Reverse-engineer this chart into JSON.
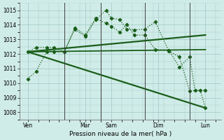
{
  "bg_color": "#d0ece8",
  "grid_color": "#a0c8c4",
  "line_color": "#1a5e1a",
  "ylim": [
    1007.5,
    1015.5
  ],
  "yticks": [
    1008,
    1009,
    1010,
    1011,
    1012,
    1013,
    1014,
    1015
  ],
  "xlabel": "Pression niveau de la mer( hPa )",
  "x_day_labels": [
    "Ven",
    "Mar",
    "Sam",
    "Dim",
    "Lun"
  ],
  "x_day_positions": [
    0,
    5.5,
    8,
    12.5,
    17
  ],
  "xlim": [
    -0.8,
    18.5
  ],
  "vlines_x": [
    3.5,
    7.0,
    11.2,
    15.5
  ],
  "series": [
    {
      "x": [
        0,
        0.8,
        1.8,
        2.5,
        3.5,
        4.5,
        5.5,
        6.5,
        7.5,
        8.0,
        8.8,
        9.5,
        10.2,
        11.2,
        12.2,
        13.5,
        14.5,
        15.5,
        16.5,
        17.0
      ],
      "y": [
        1010.3,
        1010.8,
        1012.15,
        1012.15,
        1012.15,
        1013.7,
        1013.2,
        1014.35,
        1015.0,
        1014.45,
        1014.35,
        1013.7,
        1013.65,
        1013.7,
        1014.2,
        1012.2,
        1011.8,
        1009.45,
        1009.5,
        1008.3
      ],
      "dotted": true,
      "marker": "D",
      "markersize": 2.2,
      "linewidth": 0.9
    },
    {
      "x": [
        0,
        0.8,
        1.8,
        2.5,
        3.5,
        4.5,
        5.5,
        6.5,
        7.5,
        8.0,
        8.8,
        9.5,
        10.2,
        11.2,
        12.2,
        13.5,
        14.5,
        15.5,
        16.0,
        17.0
      ],
      "y": [
        1012.15,
        1012.45,
        1012.45,
        1012.45,
        1012.15,
        1013.8,
        1013.3,
        1014.45,
        1014.1,
        1013.9,
        1013.5,
        1014.0,
        1013.3,
        1013.3,
        1012.3,
        1012.25,
        1011.1,
        1011.8,
        1009.5,
        1009.5
      ],
      "dotted": true,
      "marker": "D",
      "markersize": 2.2,
      "linewidth": 0.9
    },
    {
      "x": [
        0,
        17
      ],
      "y": [
        1012.15,
        1013.3
      ],
      "dotted": false,
      "marker": null,
      "markersize": 0,
      "linewidth": 1.6
    },
    {
      "x": [
        0,
        17
      ],
      "y": [
        1012.15,
        1012.3
      ],
      "dotted": false,
      "marker": null,
      "markersize": 0,
      "linewidth": 1.3
    },
    {
      "x": [
        0,
        17
      ],
      "y": [
        1012.15,
        1008.3
      ],
      "dotted": false,
      "marker": null,
      "markersize": 0,
      "linewidth": 1.6
    }
  ],
  "xlabel_fontsize": 6.5,
  "tick_fontsize": 5.5
}
